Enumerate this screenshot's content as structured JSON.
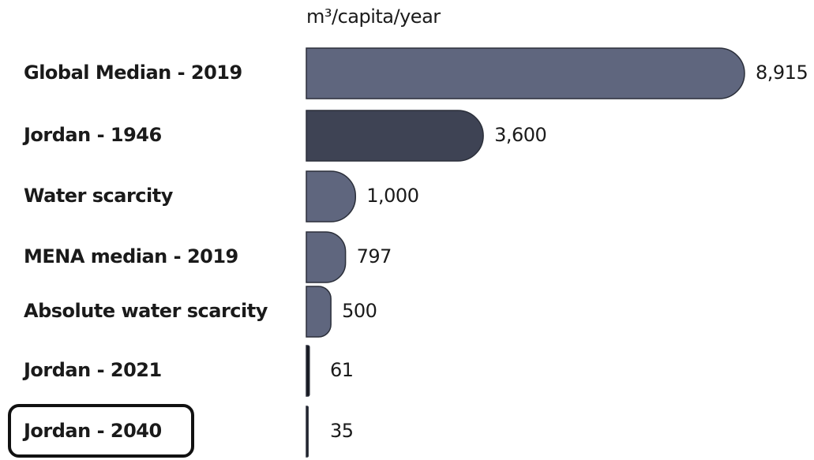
{
  "chart_data": {
    "type": "barh",
    "axis_label": "m³/capita/year",
    "categories": [
      "Global Median - 2019",
      "Jordan - 1946",
      "Water scarcity",
      "MENA median - 2019",
      "Absolute water scarcity",
      "Jordan - 2021",
      "Jordan - 2040"
    ],
    "values": [
      8915,
      3600,
      1000,
      797,
      500,
      61,
      35
    ],
    "value_labels": [
      "8,915",
      "3,600",
      "1,000",
      "797",
      "500",
      "61",
      "35"
    ],
    "colors": [
      "#5f667e",
      "#3e4354",
      "#5f667e",
      "#5f667e",
      "#5f667e",
      "#15171f",
      "#15171f"
    ]
  }
}
